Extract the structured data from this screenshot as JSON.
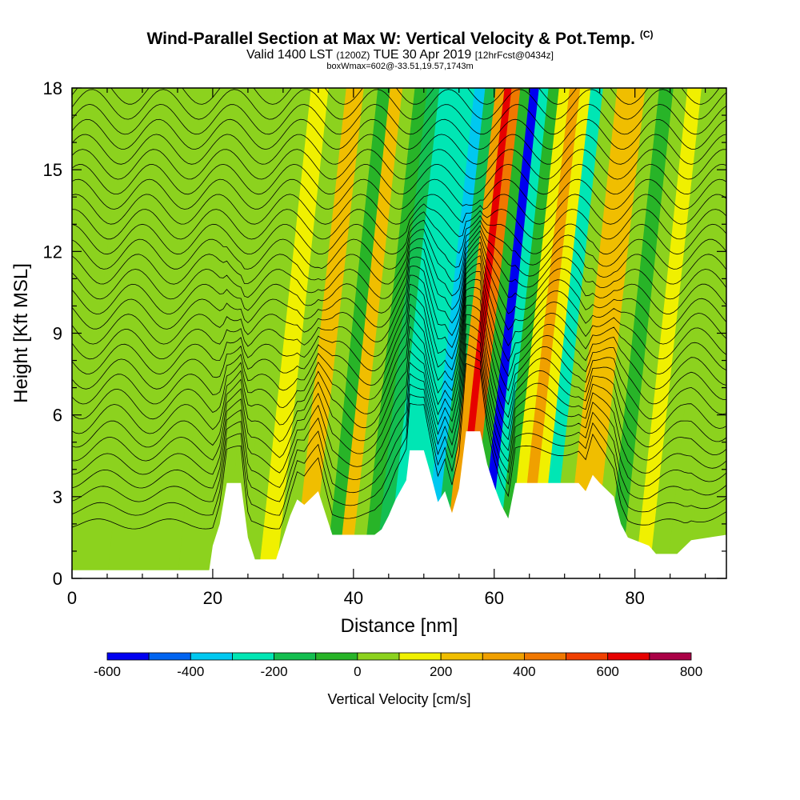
{
  "header": {
    "title": "Wind-Parallel Section at Max W: Vertical Velocity & Pot.Temp.",
    "title_mark": "(C)",
    "valid_prefix": "Valid 1400 LST",
    "valid_zulu": "(1200Z)",
    "valid_date": "TUE 30 Apr 2019",
    "forecast": "[12hrFcst@0434z]",
    "box_info": "boxWmax=602@-33.51,19.57,1743m"
  },
  "chart_data": {
    "type": "heatmap",
    "title": "Wind-Parallel Section at Max W: Vertical Velocity & Pot.Temp.",
    "xlabel": "Distance [nm]",
    "ylabel": "Height [Kft MSL]",
    "xlim": [
      0,
      93
    ],
    "ylim": [
      0,
      18
    ],
    "x_ticks": [
      0,
      20,
      40,
      60,
      80
    ],
    "y_ticks": [
      0,
      3,
      6,
      9,
      12,
      15,
      18
    ],
    "colorbar": {
      "title": "Vertical Velocity [cm/s]",
      "range": [
        -600,
        800
      ],
      "step": 100,
      "tick_labels": [
        "-600",
        "-400",
        "-200",
        "0",
        "200",
        "400",
        "600",
        "800"
      ],
      "colors": [
        "#0000f0",
        "#0064f0",
        "#00c8f0",
        "#00e6b4",
        "#14be50",
        "#28b428",
        "#8cd21e",
        "#f0f000",
        "#f0be00",
        "#f0a000",
        "#f07800",
        "#f04000",
        "#e60000",
        "#aa0046"
      ]
    },
    "vertical_velocity_columns": [
      {
        "x": 0,
        "w": 0
      },
      {
        "x": 10,
        "w": 20
      },
      {
        "x": 20,
        "w": 60
      },
      {
        "x": 23,
        "w": 80
      },
      {
        "x": 25,
        "w": 20
      },
      {
        "x": 28,
        "w": 180
      },
      {
        "x": 30,
        "w": 60
      },
      {
        "x": 33,
        "w": 210
      },
      {
        "x": 35,
        "w": 40
      },
      {
        "x": 37,
        "w": -100
      },
      {
        "x": 38.5,
        "w": 250
      },
      {
        "x": 40.5,
        "w": 60
      },
      {
        "x": 42,
        "w": -80
      },
      {
        "x": 44,
        "w": -200
      },
      {
        "x": 45.5,
        "w": -300
      },
      {
        "x": 47,
        "w": -220
      },
      {
        "x": 49,
        "w": -280
      },
      {
        "x": 50.5,
        "w": -330
      },
      {
        "x": 52,
        "w": -120
      },
      {
        "x": 53.5,
        "w": 350
      },
      {
        "x": 54.5,
        "w": 602
      },
      {
        "x": 55.5,
        "w": 420
      },
      {
        "x": 57,
        "w": -60
      },
      {
        "x": 58.3,
        "w": -560
      },
      {
        "x": 59.5,
        "w": -280
      },
      {
        "x": 61,
        "w": -80
      },
      {
        "x": 62.5,
        "w": 160
      },
      {
        "x": 64,
        "w": 380
      },
      {
        "x": 65.5,
        "w": 120
      },
      {
        "x": 67,
        "w": -210
      },
      {
        "x": 69,
        "w": 20
      },
      {
        "x": 71,
        "w": 220
      },
      {
        "x": 73,
        "w": 260
      },
      {
        "x": 75,
        "w": 40
      },
      {
        "x": 77,
        "w": -100
      },
      {
        "x": 79,
        "w": 60
      },
      {
        "x": 81,
        "w": 150
      },
      {
        "x": 83,
        "w": 60
      },
      {
        "x": 86,
        "w": 40
      },
      {
        "x": 89,
        "w": 60
      },
      {
        "x": 93,
        "w": 40
      }
    ],
    "terrain_height_kft": [
      {
        "x": 0,
        "h": 0.3
      },
      {
        "x": 19.5,
        "h": 0.3
      },
      {
        "x": 20,
        "h": 1.2
      },
      {
        "x": 21,
        "h": 2.0
      },
      {
        "x": 22,
        "h": 3.5
      },
      {
        "x": 24,
        "h": 3.5
      },
      {
        "x": 25,
        "h": 1.5
      },
      {
        "x": 26,
        "h": 0.7
      },
      {
        "x": 29,
        "h": 0.7
      },
      {
        "x": 30,
        "h": 1.5
      },
      {
        "x": 31,
        "h": 2.3
      },
      {
        "x": 32,
        "h": 2.9
      },
      {
        "x": 33,
        "h": 2.7
      },
      {
        "x": 35,
        "h": 3.2
      },
      {
        "x": 36,
        "h": 2.4
      },
      {
        "x": 37,
        "h": 1.6
      },
      {
        "x": 43,
        "h": 1.6
      },
      {
        "x": 44,
        "h": 1.8
      },
      {
        "x": 45,
        "h": 2.3
      },
      {
        "x": 46,
        "h": 2.9
      },
      {
        "x": 47.5,
        "h": 3.6
      },
      {
        "x": 48,
        "h": 4.7
      },
      {
        "x": 50,
        "h": 4.7
      },
      {
        "x": 51,
        "h": 3.8
      },
      {
        "x": 52,
        "h": 2.8
      },
      {
        "x": 53,
        "h": 3.2
      },
      {
        "x": 54,
        "h": 2.4
      },
      {
        "x": 55,
        "h": 3.3
      },
      {
        "x": 56,
        "h": 5.4
      },
      {
        "x": 58,
        "h": 5.4
      },
      {
        "x": 59,
        "h": 4.2
      },
      {
        "x": 60,
        "h": 3.4
      },
      {
        "x": 61,
        "h": 2.7
      },
      {
        "x": 62,
        "h": 2.2
      },
      {
        "x": 63,
        "h": 3.5
      },
      {
        "x": 72,
        "h": 3.5
      },
      {
        "x": 73,
        "h": 3.2
      },
      {
        "x": 74,
        "h": 3.8
      },
      {
        "x": 75,
        "h": 3.5
      },
      {
        "x": 77,
        "h": 3.0
      },
      {
        "x": 78,
        "h": 2.0
      },
      {
        "x": 79,
        "h": 1.5
      },
      {
        "x": 82,
        "h": 1.2
      },
      {
        "x": 83,
        "h": 0.9
      },
      {
        "x": 86,
        "h": 0.9
      },
      {
        "x": 88,
        "h": 1.4
      },
      {
        "x": 93,
        "h": 1.6
      }
    ],
    "potential_temperature_contours": {
      "count": 30,
      "base_kft": 2.0,
      "spacing_kft": 0.55
    }
  }
}
